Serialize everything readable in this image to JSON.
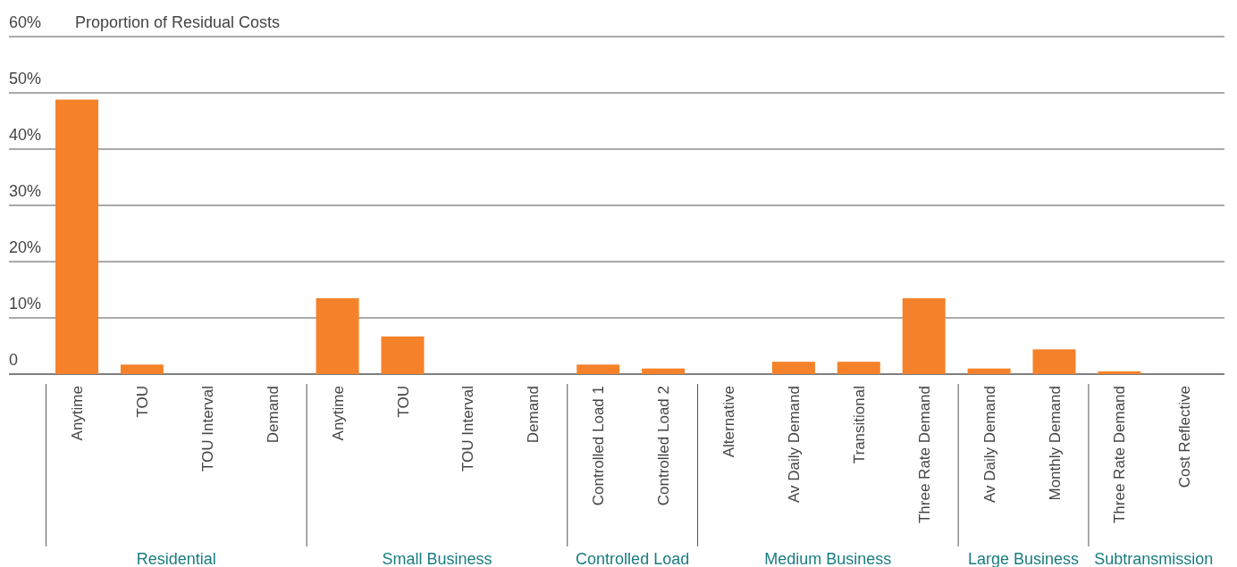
{
  "chart_data": {
    "type": "bar",
    "ylabel": "Proportion of Residual Costs",
    "categories": [
      "Anytime",
      "TOU",
      "TOU Interval",
      "Demand",
      "Anytime",
      "TOU",
      "TOU Interval",
      "Demand",
      "Controlled Load 1",
      "Controlled Load 2",
      "Alternative",
      "Av Daily Demand",
      "Transitional",
      "Three Rate Demand",
      "Av Daily Demand",
      "Monthly Demand",
      "Three Rate Demand",
      "Cost Reflective"
    ],
    "values": [
      48.8,
      1.7,
      0,
      0,
      13.5,
      6.7,
      0,
      0,
      1.7,
      1.0,
      0,
      2.2,
      2.2,
      13.5,
      1.0,
      4.4,
      0.5,
      0
    ],
    "color": "#f5822a",
    "ylim": [
      0,
      60
    ],
    "yticks": [
      {
        "value": 0,
        "label": "0"
      },
      {
        "value": 10,
        "label": "10%"
      },
      {
        "value": 20,
        "label": "20%"
      },
      {
        "value": 30,
        "label": "30%"
      },
      {
        "value": 40,
        "label": "40%"
      },
      {
        "value": 50,
        "label": "50%"
      },
      {
        "value": 60,
        "label": "60%"
      }
    ],
    "grid": "y",
    "annotations": [
      "Residential",
      "Small Business",
      "Controlled Load",
      "Medium Business",
      "Large Business",
      "Subtransmission"
    ]
  }
}
